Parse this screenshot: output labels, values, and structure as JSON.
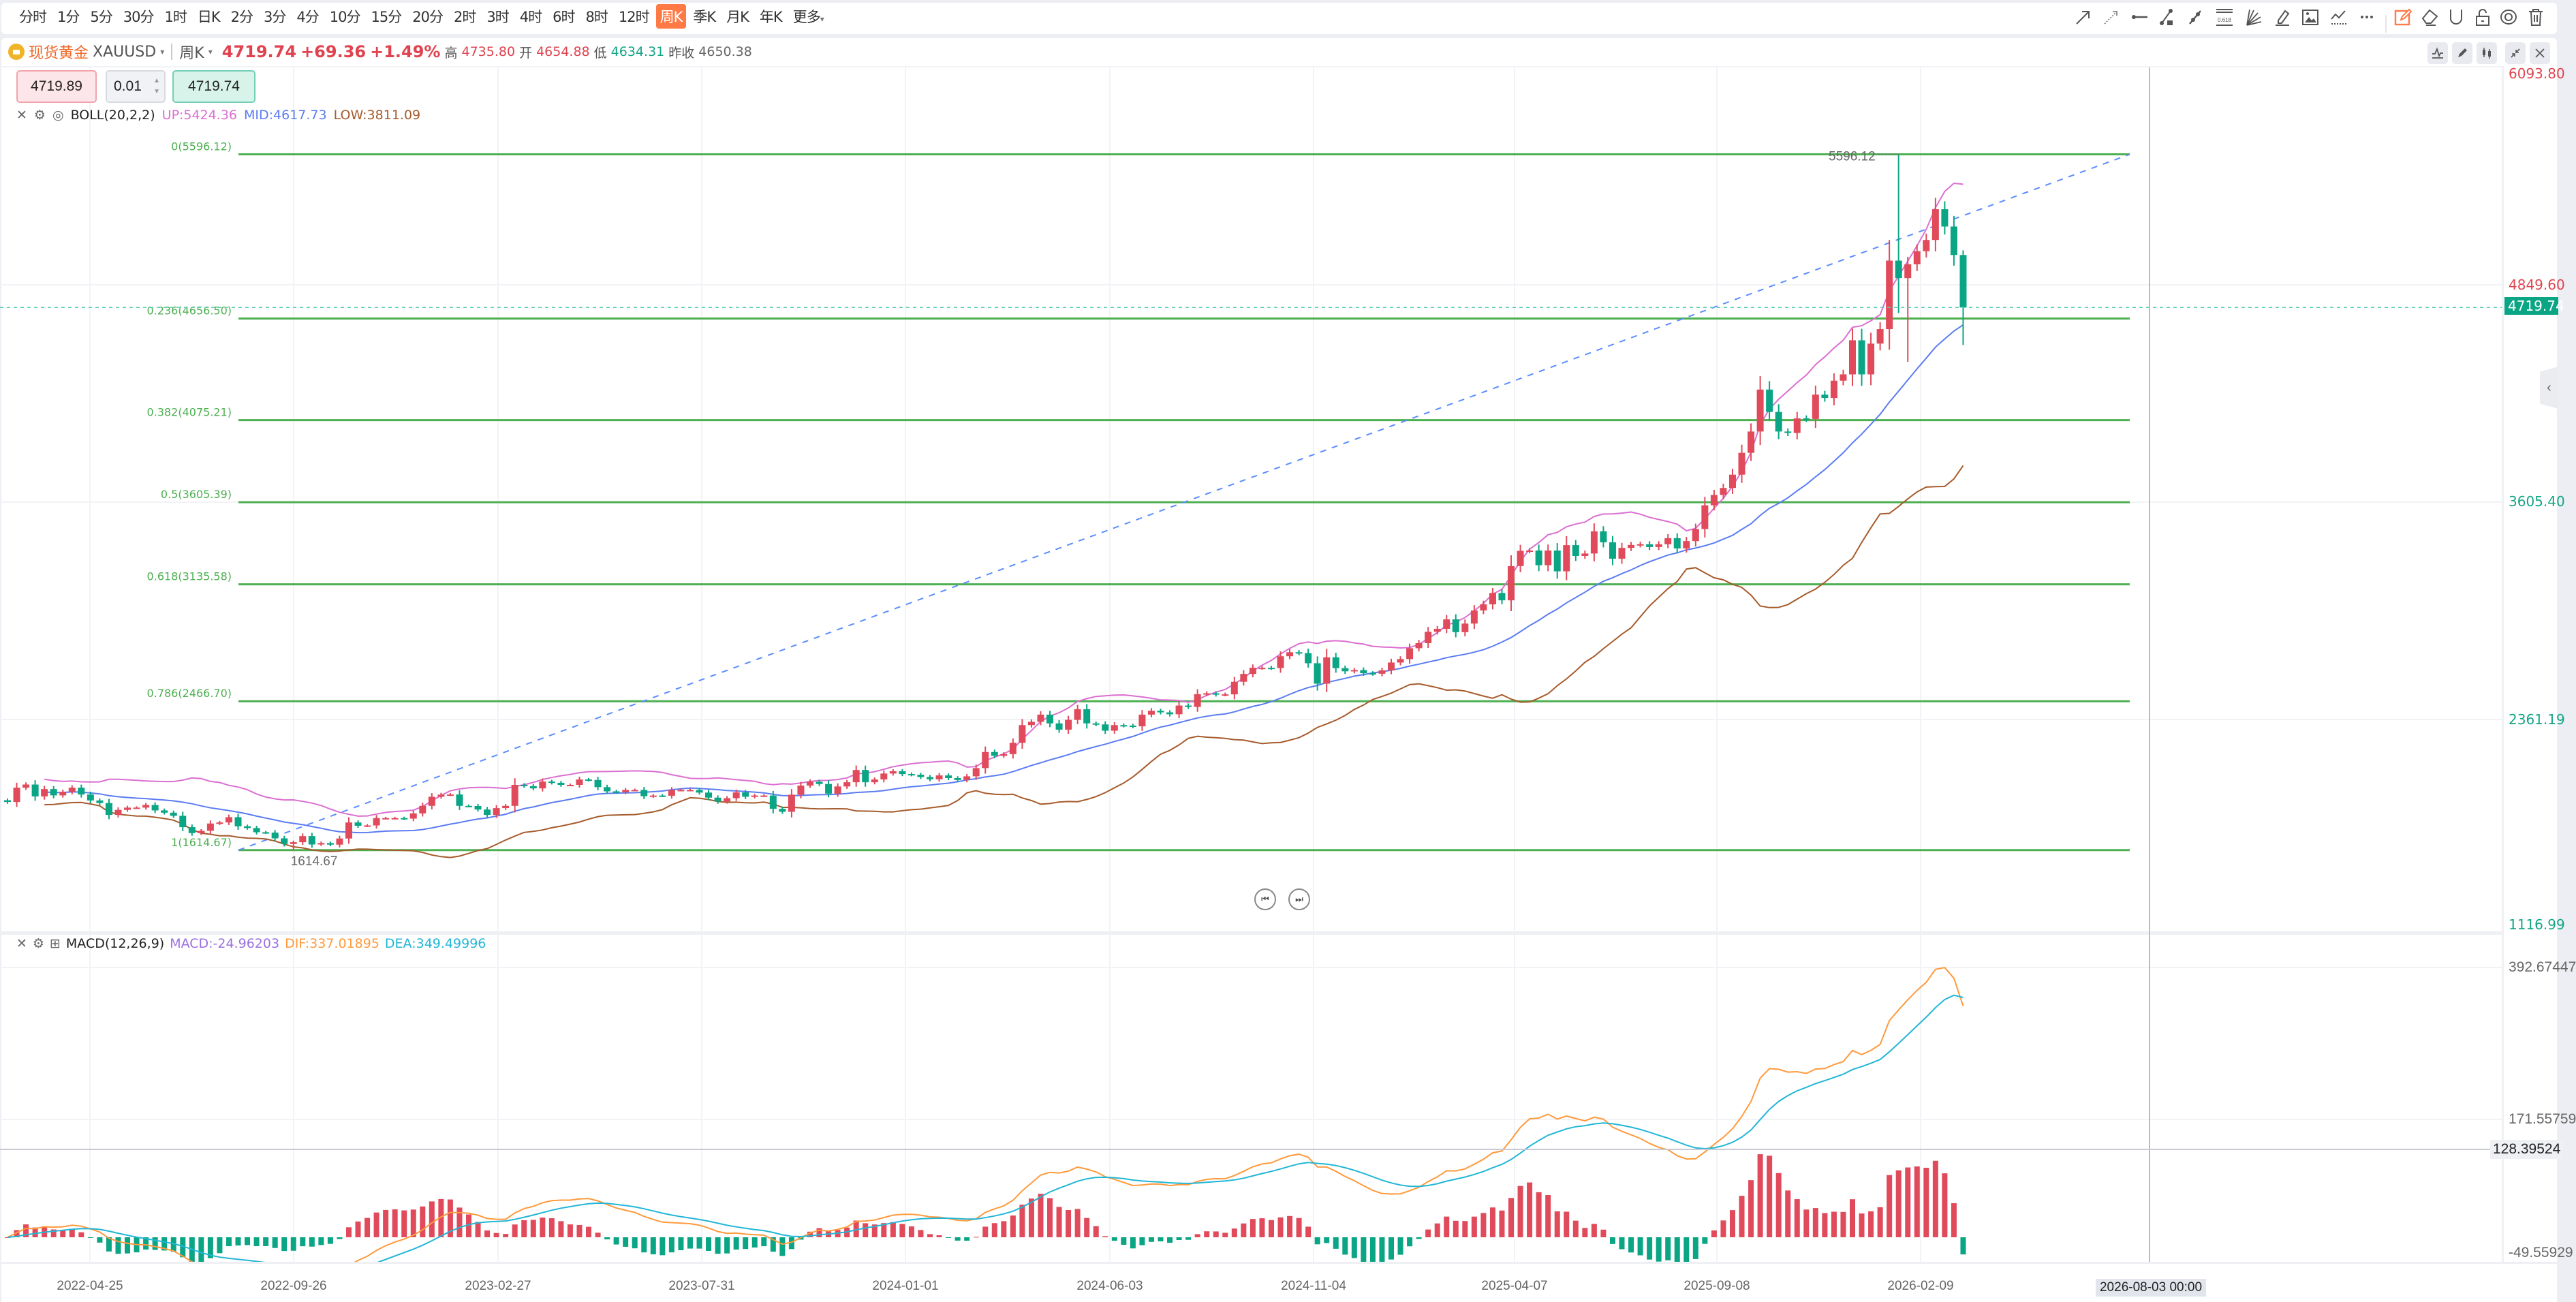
{
  "toolbar": {
    "periods": [
      "分时",
      "1分",
      "5分",
      "30分",
      "1时",
      "日K",
      "2分",
      "3分",
      "4分",
      "10分",
      "15分",
      "20分",
      "2时",
      "3时",
      "4时",
      "6时",
      "8时",
      "12时",
      "周K",
      "季K",
      "月K",
      "年K",
      "更多"
    ],
    "active_period": "周K",
    "drawing_tools": [
      "arrow-line-icon",
      "dashed-ray-icon",
      "horizontal-segment-icon",
      "segment-endpoint-icon",
      "parallel-channel-icon",
      "fibonacci-icon",
      "fan-icon",
      "highlighter-icon",
      "image-icon",
      "polyline-icon",
      "more-icon",
      "draw-mode-icon",
      "eraser-icon",
      "magnet-icon",
      "unlock-icon",
      "visibility-icon",
      "trash-icon"
    ],
    "fib_icon_text": "0.618"
  },
  "symbol": {
    "name_cn": "现货黄金",
    "code": "XAUUSD",
    "period": "周K",
    "last": "4719.74",
    "change": "+69.36",
    "change_pct": "+1.49%",
    "high_label": "高",
    "high": "4735.80",
    "open_label": "开",
    "open": "4654.88",
    "low_label": "低",
    "low": "4634.31",
    "prev_close_label": "昨收",
    "prev_close": "4650.38"
  },
  "order": {
    "sell_price": "4719.89",
    "lots": "0.01",
    "buy_price": "4719.74"
  },
  "boll": {
    "label": "BOLL(20,2,2)",
    "up": "UP:5424.36",
    "mid": "MID:4617.73",
    "low": "LOW:3811.09"
  },
  "macd": {
    "label": "MACD(12,26,9)",
    "macd": "MACD:-24.96203",
    "dif": "DIF:337.01895",
    "dea": "DEA:349.49996"
  },
  "price_axis": {
    "top": "6093.80",
    "t1": "4849.60",
    "t2": "3605.40",
    "t3": "2361.19",
    "bottom": "1116.99",
    "last_tag": "4719.74"
  },
  "macd_axis": {
    "t0": "392.67447",
    "t1": "171.55759",
    "t2": "-49.55929"
  },
  "crosshair": {
    "value": "128.39524",
    "time": "2026-08-03 00:00"
  },
  "time_axis": [
    "2022-04-25",
    "2022-09-26",
    "2023-02-27",
    "2023-07-31",
    "2024-01-01",
    "2024-06-03",
    "2024-11-04",
    "2025-04-07",
    "2025-09-08",
    "2026-02-09"
  ],
  "colors": {
    "up": "#e04a5a",
    "down": "#0aa584",
    "boll_up": "#db6fd1",
    "boll_mid": "#5b7cf2",
    "boll_low": "#a65b2c",
    "dif": "#ff9a3c",
    "dea": "#22b6d6",
    "macd_text": "#9a6fe0",
    "fib": "#4caf50",
    "trend": "#5b8cff",
    "accent": "#ff7a45"
  },
  "chart_data": {
    "type": "candlestick",
    "title": "现货黄金 XAUUSD 周K",
    "first_open": 1900,
    "closes": [
      1890,
      1972,
      1990,
      1922,
      1964,
      1928,
      1948,
      1972,
      1933,
      1899,
      1884,
      1816,
      1845,
      1858,
      1858,
      1873,
      1842,
      1829,
      1811,
      1746,
      1712,
      1725,
      1767,
      1773,
      1803,
      1751,
      1741,
      1717,
      1715,
      1682,
      1650,
      1660,
      1695,
      1647,
      1655,
      1646,
      1681,
      1773,
      1754,
      1756,
      1798,
      1798,
      1798,
      1795,
      1825,
      1868,
      1920,
      1932,
      1933,
      1868,
      1867,
      1847,
      1816,
      1855,
      1868,
      1988,
      1981,
      1968,
      2007,
      2000,
      1988,
      1988,
      2019,
      2016,
      1975,
      1951,
      1946,
      1959,
      1959,
      1923,
      1927,
      1926,
      1959,
      1959,
      1959,
      1944,
      1915,
      1893,
      1912,
      1945,
      1920,
      1927,
      1927,
      1851,
      1834,
      1932,
      1984,
      2006,
      1993,
      1938,
      1979,
      2003,
      2073,
      2003,
      2019,
      2053,
      2066,
      2050,
      2046,
      2033,
      2020,
      2042,
      2027,
      2016,
      2037,
      2084,
      2176,
      2154,
      2164,
      2229,
      2330,
      2349,
      2390,
      2340,
      2304,
      2360,
      2421,
      2340,
      2334,
      2298,
      2330,
      2327,
      2323,
      2390,
      2412,
      2403,
      2392,
      2442,
      2434,
      2507,
      2512,
      2505,
      2506,
      2578,
      2623,
      2658,
      2658,
      2657,
      2724,
      2747,
      2742,
      2684,
      2567,
      2718,
      2656,
      2638,
      2645,
      2627,
      2624,
      2643,
      2688,
      2708,
      2770,
      2799,
      2864,
      2881,
      2935,
      2862,
      2911,
      2986,
      3021,
      3086,
      3044,
      3240,
      3327,
      3329,
      3245,
      3329,
      3210,
      3360,
      3298,
      3312,
      3439,
      3376,
      3282,
      3344,
      3361,
      3365,
      3349,
      3365,
      3400,
      3341,
      3383,
      3452,
      3588,
      3647,
      3687,
      3763,
      3888,
      4010,
      4250,
      4122,
      4010,
      4002,
      4085,
      4082,
      4221,
      4202,
      4301,
      4337,
      4532,
      4337,
      4513,
      4596,
      4988,
      4888,
      4967,
      5042,
      5106,
      5282,
      5183,
      5020,
      4719.74
    ],
    "wick_overrides": [
      {
        "index": 31,
        "low": 1614.67
      },
      {
        "index": 205,
        "high": 5596.12,
        "low": 4688
      },
      {
        "index": 206,
        "high": 5010,
        "low": 4409
      },
      {
        "index": 212,
        "high": 5047,
        "low": 4505
      }
    ],
    "high_marker": "5596.12",
    "low_marker": "1614.67",
    "fib_levels": [
      {
        "ratio": 0,
        "price": 5596.12,
        "label": "0(5596.12)"
      },
      {
        "ratio": 0.236,
        "price": 4656.5,
        "label": "0.236(4656.50)"
      },
      {
        "ratio": 0.382,
        "price": 4075.21,
        "label": "0.382(4075.21)"
      },
      {
        "ratio": 0.5,
        "price": 3605.39,
        "label": "0.5(3605.39)"
      },
      {
        "ratio": 0.618,
        "price": 3135.58,
        "label": "0.618(3135.58)"
      },
      {
        "ratio": 0.786,
        "price": 2466.7,
        "label": "0.786(2466.70)"
      },
      {
        "ratio": 1,
        "price": 1614.67,
        "label": "1(1614.67)"
      }
    ],
    "price_range": [
      1116.99,
      6093.8
    ],
    "macd_range": [
      -49.55929,
      392.67447
    ],
    "indicators": {
      "boll": [
        20,
        2
      ],
      "macd": [
        12,
        26,
        9
      ]
    }
  }
}
